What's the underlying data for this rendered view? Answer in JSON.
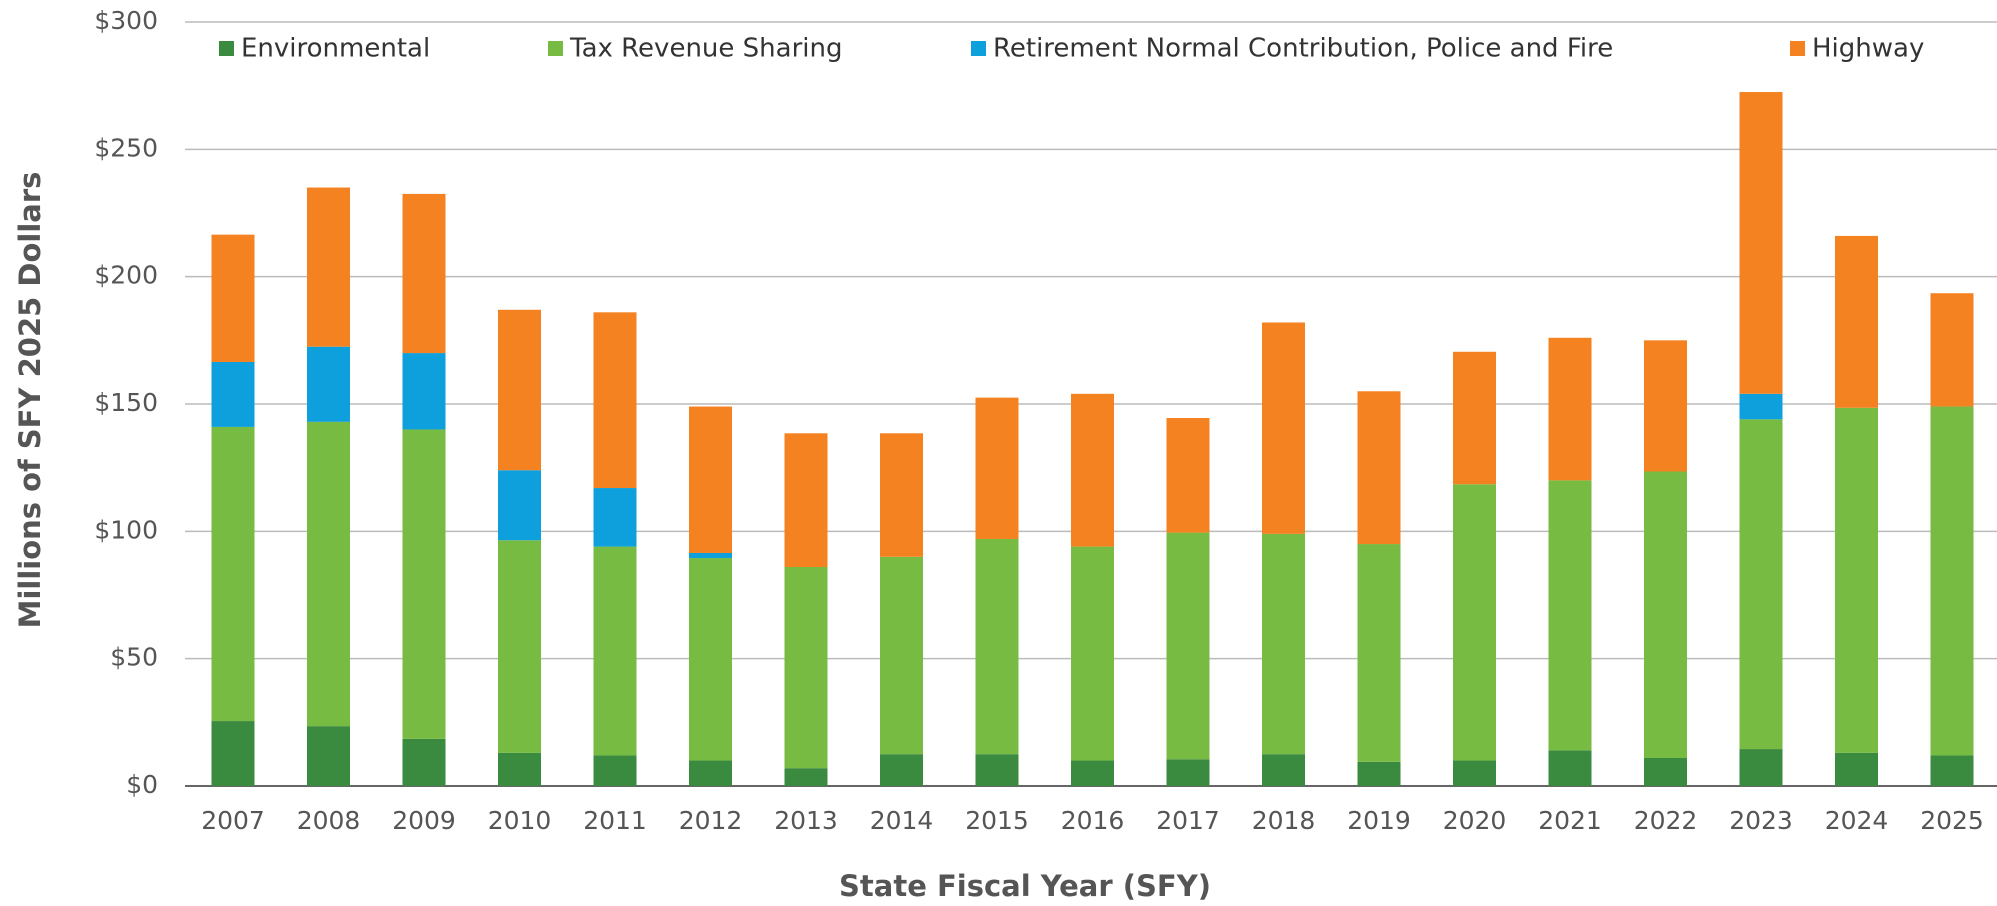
{
  "chart_data": {
    "type": "stacked_bar",
    "x_label": "State Fiscal Year (SFY)",
    "y_label": "Millions of SFY 2025 Dollars",
    "categories": [
      "2007",
      "2008",
      "2009",
      "2010",
      "2011",
      "2012",
      "2013",
      "2014",
      "2015",
      "2016",
      "2017",
      "2018",
      "2019",
      "2020",
      "2021",
      "2022",
      "2023",
      "2024",
      "2025"
    ],
    "series": [
      {
        "name": "Environmental",
        "color": "#3a8a3f",
        "values": [
          25.5,
          23.5,
          18.5,
          13,
          12,
          10,
          7,
          12.5,
          12.5,
          10,
          10.5,
          12.5,
          9.5,
          10,
          14,
          11,
          14.5,
          13,
          12
        ]
      },
      {
        "name": "Tax Revenue Sharing",
        "color": "#77bb43",
        "values": [
          115.5,
          119.5,
          121.5,
          83.5,
          82,
          79.5,
          79,
          77.5,
          84.5,
          84,
          89,
          86.5,
          85.5,
          108.5,
          106,
          112.5,
          129.5,
          135.5,
          137
        ]
      },
      {
        "name": "Retirement Normal Contribution, Police and Fire",
        "color": "#0ea0dc",
        "values": [
          25.5,
          29.5,
          30,
          27.5,
          23,
          2,
          0,
          0,
          0,
          0,
          0,
          0,
          0,
          0,
          0,
          0,
          10,
          0,
          0
        ]
      },
      {
        "name": "Highway",
        "color": "#f58220",
        "values": [
          50,
          62.5,
          62.5,
          63,
          69,
          57.5,
          52.5,
          48.5,
          55.5,
          60,
          45,
          83,
          60,
          52,
          56,
          51.5,
          118.5,
          67.5,
          44.5
        ]
      }
    ],
    "ylim": [
      0,
      300
    ],
    "yticks": [
      {
        "value": 0,
        "label": "$0"
      },
      {
        "value": 50,
        "label": "$50"
      },
      {
        "value": 100,
        "label": "$100"
      },
      {
        "value": 150,
        "label": "$150"
      },
      {
        "value": 200,
        "label": "$200"
      },
      {
        "value": 250,
        "label": "$250"
      },
      {
        "value": 300,
        "label": "$300"
      }
    ],
    "grid": true,
    "legend": "top"
  }
}
